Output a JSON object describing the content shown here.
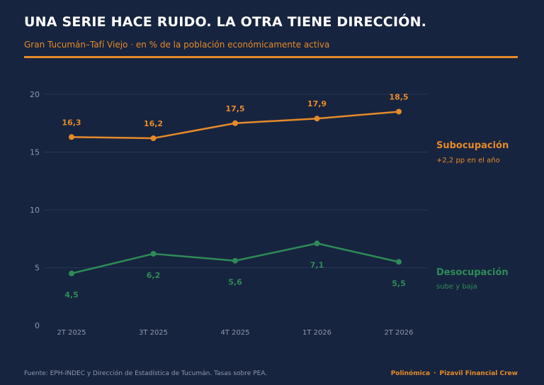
{
  "header": {
    "title": "UNA SERIE HACE RUIDO. LA OTRA TIENE DIRECCIÓN.",
    "subtitle": "Gran Tucumán–Tafí Viejo · en % de la población económicamente activa"
  },
  "footer": {
    "source": "Fuente: EPH-INDEC y Dirección de Estadística de Tucumán. Tasas sobre PEA.",
    "brand_1": "Polinómica",
    "separator": "·",
    "brand_2": "Pizavil Financial Crew"
  },
  "colors": {
    "background": "#17243f",
    "subocupacion": "#e58a2a",
    "desocupacion": "#2e8b57",
    "grid": "#26365a",
    "tick": "#8e97ab"
  },
  "chart_data": {
    "type": "line",
    "categories": [
      "2T 2025",
      "3T 2025",
      "4T 2025",
      "1T 2026",
      "2T 2026"
    ],
    "yticks": [
      0,
      5,
      10,
      15,
      20
    ],
    "ylim": [
      0,
      20
    ],
    "grid": true,
    "series": [
      {
        "name": "Subocupación",
        "note": "+2,2 pp en el año",
        "values": [
          16.3,
          16.2,
          17.5,
          17.9,
          18.5
        ],
        "labels": [
          "16,3",
          "16,2",
          "17,5",
          "17,9",
          "18,5"
        ],
        "label_position": "above"
      },
      {
        "name": "Desocupación",
        "note": "sube y baja",
        "values": [
          4.5,
          6.2,
          5.6,
          7.1,
          5.5
        ],
        "labels": [
          "4,5",
          "6,2",
          "5,6",
          "7,1",
          "5,5"
        ],
        "label_position": "below"
      }
    ]
  }
}
